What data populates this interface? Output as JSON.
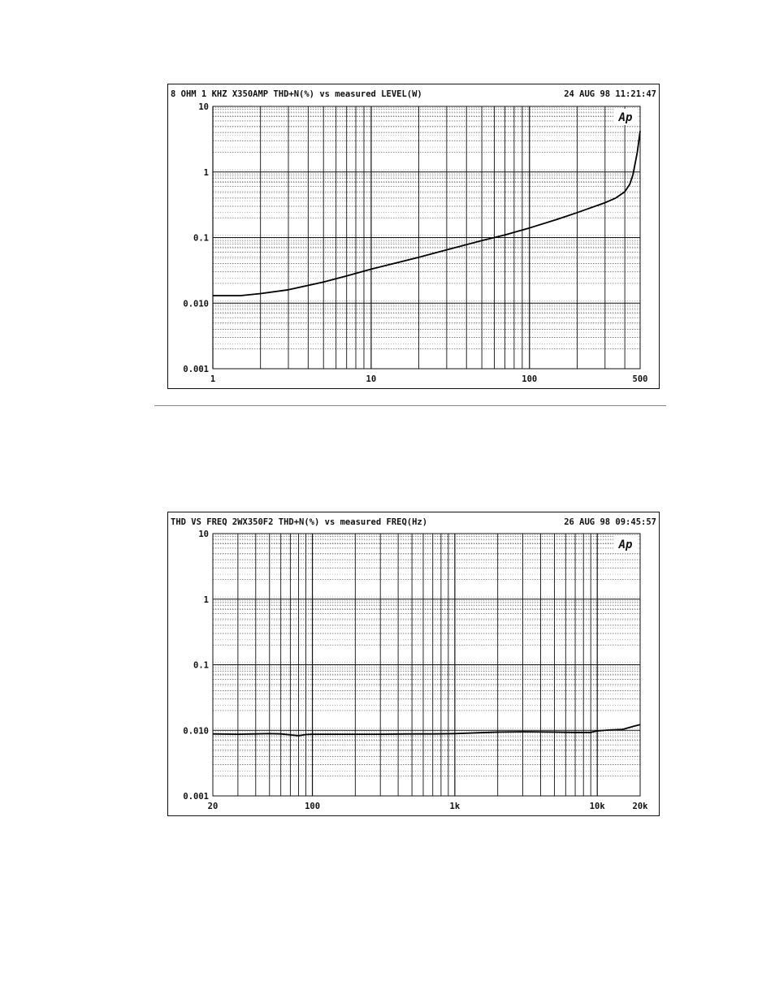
{
  "chart_data": [
    {
      "type": "line",
      "title": "8 OHM 1 KHZ X350AMP THD+N(%) vs measured LEVEL(W)",
      "timestamp": "24 AUG 98 11:21:47",
      "badge": "Ap",
      "xscale": "log",
      "yscale": "log",
      "xlim": [
        1,
        500
      ],
      "ylim": [
        0.001,
        10
      ],
      "x_tick_labels": [
        {
          "value": 1,
          "label": "1"
        },
        {
          "value": 10,
          "label": "10"
        },
        {
          "value": 100,
          "label": "100"
        },
        {
          "value": 500,
          "label": "500"
        }
      ],
      "y_tick_labels": [
        {
          "value": 10,
          "label": "10"
        },
        {
          "value": 1,
          "label": "1"
        },
        {
          "value": 0.1,
          "label": "0.1"
        },
        {
          "value": 0.01,
          "label": "0.010"
        },
        {
          "value": 0.001,
          "label": "0.001"
        }
      ],
      "grid": true,
      "series": [
        {
          "x": [
            1,
            1.5,
            2,
            3,
            5,
            7,
            10,
            20,
            30,
            50,
            70,
            100,
            150,
            200,
            300,
            350,
            400,
            430,
            450,
            480,
            500
          ],
          "y": [
            0.013,
            0.013,
            0.014,
            0.016,
            0.021,
            0.026,
            0.033,
            0.05,
            0.065,
            0.09,
            0.11,
            0.14,
            0.19,
            0.24,
            0.34,
            0.4,
            0.5,
            0.65,
            0.9,
            2.0,
            4.2
          ]
        }
      ]
    },
    {
      "type": "line",
      "title": "THD VS FREQ 2WX350F2 THD+N(%) vs measured FREQ(Hz)",
      "timestamp": "26 AUG 98 09:45:57",
      "badge": "Ap",
      "xscale": "log",
      "yscale": "log",
      "xlim": [
        20,
        20000
      ],
      "ylim": [
        0.001,
        10
      ],
      "x_tick_labels": [
        {
          "value": 20,
          "label": "20"
        },
        {
          "value": 100,
          "label": "100"
        },
        {
          "value": 1000,
          "label": "1k"
        },
        {
          "value": 10000,
          "label": "10k"
        },
        {
          "value": 20000,
          "label": "20k"
        }
      ],
      "y_tick_labels": [
        {
          "value": 10,
          "label": "10"
        },
        {
          "value": 1,
          "label": "1"
        },
        {
          "value": 0.1,
          "label": "0.1"
        },
        {
          "value": 0.01,
          "label": "0.010"
        },
        {
          "value": 0.001,
          "label": "0.001"
        }
      ],
      "grid": true,
      "series": [
        {
          "x": [
            20,
            30,
            40,
            50,
            60,
            70,
            80,
            90,
            100,
            150,
            200,
            300,
            500,
            700,
            1000,
            1500,
            2000,
            3000,
            5000,
            7000,
            9000,
            10000,
            12000,
            15000,
            18000,
            20000
          ],
          "y": [
            0.0088,
            0.0087,
            0.0088,
            0.0089,
            0.0088,
            0.0085,
            0.0083,
            0.0086,
            0.0087,
            0.0087,
            0.0087,
            0.0087,
            0.0088,
            0.0088,
            0.0089,
            0.0092,
            0.0094,
            0.0095,
            0.0094,
            0.0093,
            0.0093,
            0.0098,
            0.0101,
            0.0103,
            0.0115,
            0.0122
          ]
        }
      ]
    }
  ]
}
